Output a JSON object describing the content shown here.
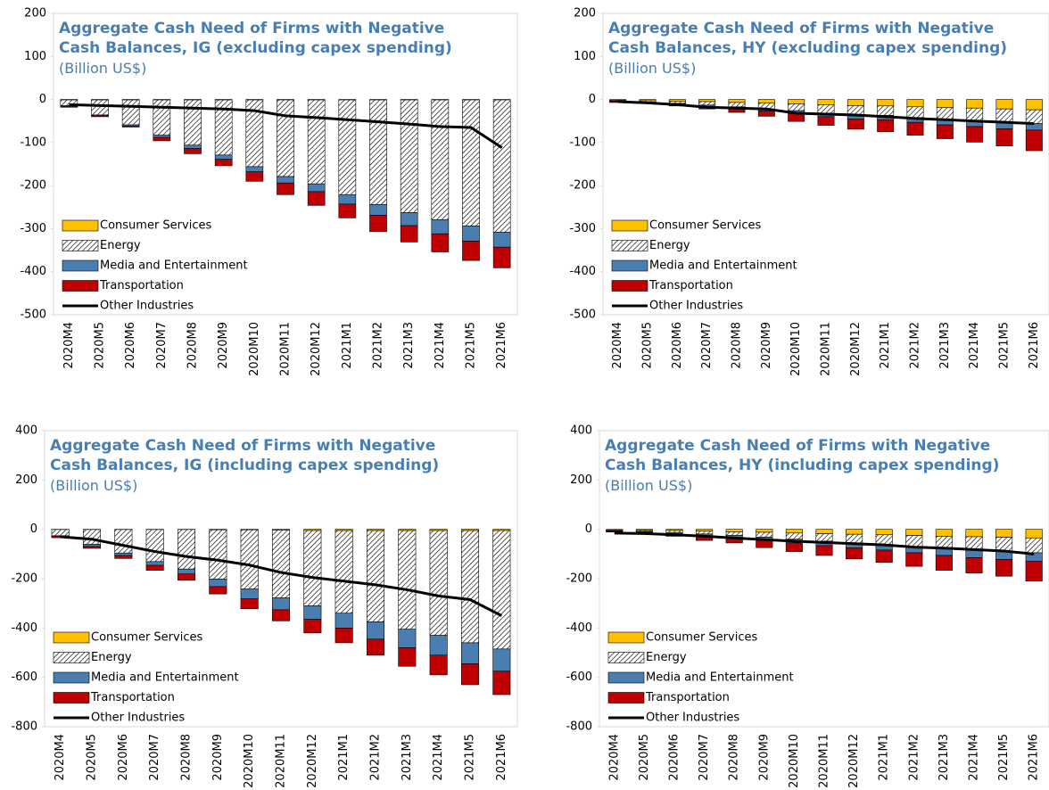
{
  "chart_data": [
    {
      "type": "bar",
      "stacked": true,
      "title": "Aggregate Cash Need of Firms with Negative Cash Balances, IG (excluding capex spending)",
      "subtitle": "(Billion US$)",
      "categories": [
        "2020M4",
        "2020M5",
        "2020M6",
        "2020M7",
        "2020M8",
        "2020M9",
        "2020M10",
        "2020M11",
        "2020M12",
        "2021M1",
        "2021M2",
        "2021M3",
        "2021M4",
        "2021M5",
        "2021M6"
      ],
      "ylim": [
        -500,
        200
      ],
      "yticks": [
        200,
        100,
        0,
        -100,
        -200,
        -300,
        -400,
        -500
      ],
      "legend": "lower left",
      "series": [
        {
          "name": "Consumer Services",
          "color": "#ffc000",
          "values": [
            -1,
            -1,
            -1,
            -1,
            -1,
            -1,
            -1,
            -1,
            -1,
            -1,
            -1,
            -1,
            -1,
            -1,
            -1
          ]
        },
        {
          "name": "Energy",
          "color": "#000000",
          "pattern": "hatch",
          "values": [
            -13,
            -35,
            -58,
            -82,
            -105,
            -128,
            -155,
            -178,
            -195,
            -220,
            -243,
            -262,
            -278,
            -293,
            -307
          ]
        },
        {
          "name": "Media and Entertainment",
          "color": "#4a7eb0",
          "values": [
            -2,
            -2,
            -3,
            -5,
            -8,
            -10,
            -12,
            -15,
            -18,
            -22,
            -25,
            -30,
            -33,
            -35,
            -35
          ]
        },
        {
          "name": "Transportation",
          "color": "#c00000",
          "values": [
            -2,
            -2,
            -2,
            -8,
            -12,
            -15,
            -22,
            -27,
            -32,
            -32,
            -38,
            -38,
            -42,
            -45,
            -48
          ]
        },
        {
          "name": "Other Industries",
          "color": "#000000",
          "type": "line",
          "values": [
            -12,
            -14,
            -16,
            -18,
            -20,
            -22,
            -26,
            -38,
            -42,
            -47,
            -52,
            -57,
            -63,
            -65,
            -112
          ]
        }
      ]
    },
    {
      "type": "bar",
      "stacked": true,
      "title": "Aggregate Cash Need of Firms with Negative Cash Balances, HY (excluding capex spending)",
      "subtitle": "(Billion US$)",
      "categories": [
        "2020M4",
        "2020M5",
        "2020M6",
        "2020M7",
        "2020M8",
        "2020M9",
        "2020M10",
        "2020M11",
        "2020M12",
        "2021M1",
        "2021M2",
        "2021M3",
        "2021M4",
        "2021M5",
        "2021M6"
      ],
      "ylim": [
        -500,
        200
      ],
      "yticks": [
        200,
        100,
        0,
        -100,
        -200,
        -300,
        -400,
        -500
      ],
      "legend": "lower left",
      "series": [
        {
          "name": "Consumer Services",
          "color": "#ffc000",
          "values": [
            -2,
            -3,
            -4,
            -5,
            -7,
            -8,
            -10,
            -12,
            -14,
            -15,
            -17,
            -19,
            -20,
            -22,
            -24
          ]
        },
        {
          "name": "Energy",
          "color": "#000000",
          "pattern": "hatch",
          "values": [
            -2,
            -3,
            -5,
            -8,
            -10,
            -14,
            -16,
            -20,
            -22,
            -22,
            -25,
            -28,
            -30,
            -32,
            -32
          ]
        },
        {
          "name": "Media and Entertainment",
          "color": "#4a7eb0",
          "values": [
            -1,
            -1,
            -2,
            -3,
            -4,
            -5,
            -7,
            -8,
            -9,
            -10,
            -11,
            -12,
            -13,
            -14,
            -15
          ]
        },
        {
          "name": "Transportation",
          "color": "#c00000",
          "values": [
            -2,
            -2,
            -4,
            -6,
            -9,
            -12,
            -18,
            -20,
            -24,
            -28,
            -30,
            -32,
            -36,
            -40,
            -48
          ]
        },
        {
          "name": "Other Industries",
          "color": "#000000",
          "type": "line",
          "values": [
            -5,
            -8,
            -12,
            -18,
            -20,
            -22,
            -32,
            -34,
            -36,
            -40,
            -44,
            -47,
            -50,
            -53,
            -56
          ]
        }
      ]
    },
    {
      "type": "bar",
      "stacked": true,
      "title": "Aggregate Cash Need of Firms with Negative Cash Balances, IG (including capex spending)",
      "subtitle": "(Billion US$)",
      "categories": [
        "2020M4",
        "2020M5",
        "2020M6",
        "2020M7",
        "2020M8",
        "2020M9",
        "2020M10",
        "2020M11",
        "2020M12",
        "2021M1",
        "2021M2",
        "2021M3",
        "2021M4",
        "2021M5",
        "2021M6"
      ],
      "ylim": [
        -800,
        400
      ],
      "yticks": [
        400,
        200,
        0,
        -200,
        -400,
        -600,
        -800
      ],
      "legend": "lower left",
      "series": [
        {
          "name": "Consumer Services",
          "color": "#ffc000",
          "values": [
            -1,
            -1,
            -1,
            -1,
            -1,
            -2,
            -2,
            -3,
            -5,
            -5,
            -5,
            -5,
            -5,
            -5,
            -5
          ]
        },
        {
          "name": "Energy",
          "color": "#000000",
          "pattern": "hatch",
          "values": [
            -25,
            -60,
            -95,
            -130,
            -160,
            -200,
            -240,
            -275,
            -305,
            -335,
            -370,
            -400,
            -425,
            -455,
            -480
          ]
        },
        {
          "name": "Media and Entertainment",
          "color": "#4a7eb0",
          "values": [
            -3,
            -8,
            -10,
            -15,
            -20,
            -30,
            -40,
            -48,
            -55,
            -60,
            -70,
            -75,
            -80,
            -85,
            -90
          ]
        },
        {
          "name": "Transportation",
          "color": "#c00000",
          "values": [
            -5,
            -8,
            -12,
            -20,
            -25,
            -30,
            -40,
            -45,
            -55,
            -60,
            -65,
            -75,
            -80,
            -85,
            -95
          ]
        },
        {
          "name": "Other Industries",
          "color": "#000000",
          "type": "line",
          "values": [
            -30,
            -40,
            -65,
            -90,
            -110,
            -125,
            -145,
            -175,
            -195,
            -210,
            -225,
            -245,
            -270,
            -285,
            -350
          ]
        }
      ]
    },
    {
      "type": "bar",
      "stacked": true,
      "title": "Aggregate Cash Need of Firms with Negative Cash Balances, HY (including capex spending)",
      "subtitle": "(Billion US$)",
      "categories": [
        "2020M4",
        "2020M5",
        "2020M6",
        "2020M7",
        "2020M8",
        "2020M9",
        "2020M10",
        "2020M11",
        "2020M12",
        "2021M1",
        "2021M2",
        "2021M3",
        "2021M4",
        "2021M5",
        "2021M6"
      ],
      "ylim": [
        -800,
        400
      ],
      "yticks": [
        400,
        200,
        0,
        -200,
        -400,
        -600,
        -800
      ],
      "legend": "lower left",
      "series": [
        {
          "name": "Consumer Services",
          "color": "#ffc000",
          "values": [
            -3,
            -4,
            -5,
            -7,
            -10,
            -12,
            -15,
            -18,
            -20,
            -22,
            -25,
            -28,
            -30,
            -32,
            -35
          ]
        },
        {
          "name": "Energy",
          "color": "#000000",
          "pattern": "hatch",
          "values": [
            -3,
            -4,
            -8,
            -12,
            -15,
            -20,
            -25,
            -30,
            -35,
            -40,
            -45,
            -50,
            -55,
            -58,
            -60
          ]
        },
        {
          "name": "Media and Entertainment",
          "color": "#4a7eb0",
          "values": [
            -2,
            -3,
            -5,
            -8,
            -10,
            -12,
            -15,
            -18,
            -20,
            -22,
            -25,
            -28,
            -30,
            -32,
            -35
          ]
        },
        {
          "name": "Transportation",
          "color": "#c00000",
          "values": [
            -3,
            -4,
            -10,
            -18,
            -20,
            -30,
            -35,
            -40,
            -45,
            -50,
            -55,
            -60,
            -62,
            -68,
            -80
          ]
        },
        {
          "name": "Other Industries",
          "color": "#000000",
          "type": "line",
          "values": [
            -15,
            -17,
            -22,
            -28,
            -35,
            -42,
            -48,
            -53,
            -58,
            -63,
            -72,
            -76,
            -82,
            -88,
            -100
          ]
        }
      ]
    }
  ]
}
